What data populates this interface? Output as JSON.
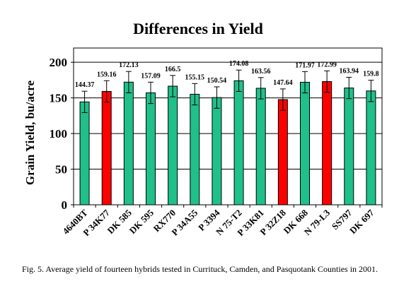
{
  "caption": "Fig. 5.  Average yield of fourteen hybrids tested in Currituck, Camden, and Pasquotank Counties in 2001.",
  "colors": {
    "green": "#1fc08a",
    "red": "#ff0000"
  },
  "chart_data": {
    "type": "bar",
    "title": "Differences in Yield",
    "xlabel": "",
    "ylabel": "Grain Yield, bu/acre",
    "ylim": [
      0,
      220
    ],
    "yticks": [
      0,
      50,
      100,
      150,
      200
    ],
    "grid": true,
    "error_bars": true,
    "categories": [
      "4640BT",
      "P 34K77",
      "DK 585",
      "DK 595",
      "RX770",
      "P 34A55",
      "P 3394",
      "N 75-T2",
      "P 33K81",
      "P 32Z18",
      "DK 668",
      "N 79-L3",
      "SS797",
      "DK 697"
    ],
    "values": [
      144.37,
      159.16,
      172.13,
      157.09,
      166.5,
      155.15,
      150.54,
      174.08,
      163.56,
      147.64,
      171.97,
      172.99,
      163.94,
      159.8
    ],
    "value_labels": [
      "144.37",
      "159.16",
      "172.13",
      "157.09",
      "166.5",
      "155.15",
      "150.54",
      "174.08",
      "163.56",
      "147.64",
      "171.97",
      "172.99",
      "163.94",
      "159.8"
    ],
    "error": 15,
    "bar_colors": [
      "green",
      "red",
      "green",
      "green",
      "green",
      "green",
      "green",
      "green",
      "green",
      "red",
      "green",
      "red",
      "green",
      "green"
    ]
  }
}
